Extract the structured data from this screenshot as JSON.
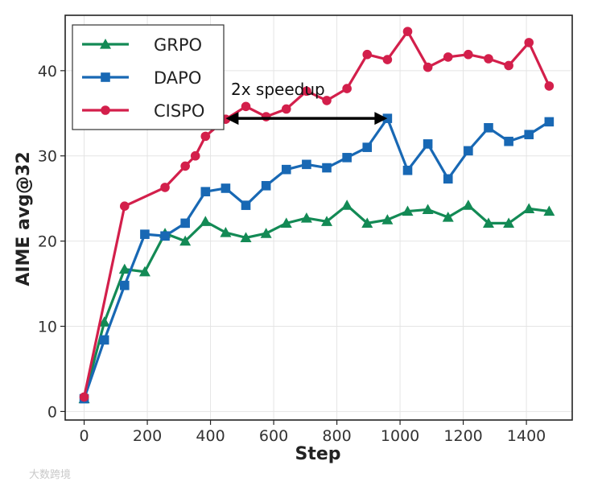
{
  "chart_data": {
    "type": "line",
    "xlabel": "Step",
    "ylabel": "AIME avg@32",
    "xlim": [
      -60,
      1545
    ],
    "ylim": [
      -1,
      46.5
    ],
    "xticks": [
      0,
      200,
      400,
      600,
      800,
      1000,
      1200,
      1400
    ],
    "yticks": [
      0,
      10,
      20,
      30,
      40
    ],
    "grid": true,
    "legend_position": "top-left",
    "series": [
      {
        "name": "GRPO",
        "color": "#138a55",
        "marker": "triangle",
        "x": [
          0,
          64,
          128,
          192,
          256,
          320,
          384,
          448,
          512,
          576,
          640,
          704,
          768,
          832,
          896,
          960,
          1024,
          1088,
          1152,
          1216,
          1280,
          1344,
          1408,
          1472
        ],
        "values": [
          1.5,
          10.5,
          16.7,
          16.4,
          20.9,
          20.0,
          22.3,
          21.0,
          20.4,
          20.9,
          22.1,
          22.7,
          22.3,
          24.2,
          22.1,
          22.5,
          23.5,
          23.7,
          22.8,
          24.2,
          22.1,
          22.1,
          23.8,
          23.5
        ]
      },
      {
        "name": "DAPO",
        "color": "#1868b4",
        "marker": "square",
        "x": [
          0,
          64,
          128,
          192,
          256,
          320,
          384,
          448,
          512,
          576,
          640,
          704,
          768,
          832,
          896,
          960,
          1024,
          1088,
          1152,
          1216,
          1280,
          1344,
          1408,
          1472
        ],
        "values": [
          1.5,
          8.4,
          14.8,
          20.8,
          20.6,
          22.1,
          25.8,
          26.2,
          24.2,
          26.5,
          28.4,
          29.0,
          28.6,
          29.8,
          31.0,
          34.4,
          28.3,
          31.4,
          27.3,
          30.6,
          33.3,
          31.7,
          32.5,
          34.0
        ]
      },
      {
        "name": "CISPO",
        "color": "#d31f4b",
        "marker": "circle",
        "x": [
          0,
          128,
          256,
          320,
          352,
          384,
          448,
          512,
          576,
          640,
          704,
          768,
          832,
          896,
          960,
          1024,
          1088,
          1152,
          1216,
          1280,
          1344,
          1408,
          1472
        ],
        "values": [
          1.7,
          24.1,
          26.3,
          28.8,
          30.0,
          32.3,
          34.3,
          35.8,
          34.6,
          35.5,
          37.6,
          36.5,
          37.9,
          41.9,
          41.3,
          44.6,
          40.4,
          41.6,
          41.9,
          41.4,
          40.6,
          43.3,
          38.2
        ]
      }
    ],
    "annotation": {
      "text": "2x speedup",
      "arrow_from": [
        448,
        34.4
      ],
      "arrow_to": [
        960,
        34.4
      ]
    }
  },
  "watermark": {
    "text": "大数跨境"
  }
}
